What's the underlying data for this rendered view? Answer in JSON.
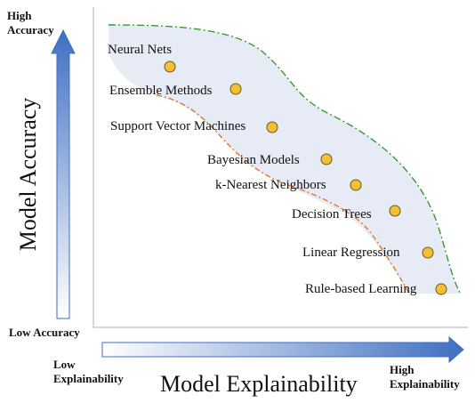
{
  "axes": {
    "y": {
      "title": "Model Accuracy",
      "high_label": "High Accuracy",
      "low_label": "Low Accuracy"
    },
    "x": {
      "title": "Model Explainability",
      "low_label": "Low Explainability",
      "high_label": "High Explainability"
    }
  },
  "models": [
    {
      "label": "Neural Nets"
    },
    {
      "label": "Ensemble Methods"
    },
    {
      "label": "Support Vector Machines"
    },
    {
      "label": "Bayesian Models"
    },
    {
      "label": "k-Nearest Neighbors"
    },
    {
      "label": "Decision Trees"
    },
    {
      "label": "Linear Regression"
    },
    {
      "label": "Rule-based Learning"
    }
  ],
  "colors": {
    "region_fill": "#e6ebf6",
    "upper_boundary": "#3a9a2a",
    "lower_boundary": "#e87722",
    "marker_fill": "#f3bf35",
    "marker_stroke": "#6b5a14",
    "arrow_dark": "#3f6fc2",
    "arrow_light": "#ffffff"
  }
}
